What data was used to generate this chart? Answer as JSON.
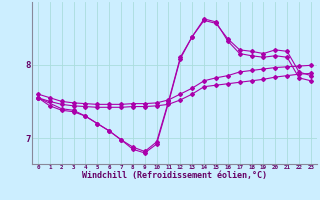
{
  "background_color": "#cceeff",
  "grid_color": "#aadddd",
  "line_color": "#aa00aa",
  "marker_color": "#aa00aa",
  "xlabel": "Windchill (Refroidissement éolien,°C)",
  "xlabel_fontsize": 6,
  "xtick_labels": [
    "0",
    "1",
    "2",
    "3",
    "4",
    "5",
    "6",
    "7",
    "8",
    "9",
    "10",
    "11",
    "12",
    "13",
    "14",
    "15",
    "16",
    "17",
    "18",
    "19",
    "20",
    "21",
    "22",
    "23"
  ],
  "ytick_labels": [
    "7",
    "8"
  ],
  "xmin": -0.5,
  "xmax": 23.5,
  "ymin": 6.65,
  "ymax": 8.85,
  "lines": [
    {
      "x": [
        0,
        1,
        2,
        3,
        4,
        5,
        6,
        7,
        8,
        9,
        10,
        11,
        12,
        13,
        14,
        15,
        16,
        17,
        18,
        19,
        20,
        21,
        22,
        23
      ],
      "y": [
        7.55,
        7.5,
        7.46,
        7.44,
        7.43,
        7.42,
        7.42,
        7.42,
        7.43,
        7.43,
        7.44,
        7.46,
        7.52,
        7.6,
        7.7,
        7.72,
        7.74,
        7.76,
        7.78,
        7.8,
        7.83,
        7.85,
        7.87,
        7.88
      ]
    },
    {
      "x": [
        0,
        1,
        2,
        3,
        4,
        5,
        6,
        7,
        8,
        9,
        10,
        11,
        12,
        13,
        14,
        15,
        16,
        17,
        18,
        19,
        20,
        21,
        22,
        23
      ],
      "y": [
        7.6,
        7.55,
        7.5,
        7.48,
        7.47,
        7.46,
        7.46,
        7.46,
        7.47,
        7.47,
        7.48,
        7.52,
        7.6,
        7.68,
        7.78,
        7.82,
        7.85,
        7.9,
        7.92,
        7.94,
        7.96,
        7.97,
        7.98,
        7.99
      ]
    },
    {
      "x": [
        0,
        1,
        2,
        3,
        4,
        5,
        6,
        7,
        8,
        9,
        10,
        11,
        12,
        13,
        14,
        15,
        16,
        17,
        18,
        19,
        20,
        21,
        22,
        23
      ],
      "y": [
        7.55,
        7.44,
        7.38,
        7.36,
        7.3,
        7.2,
        7.1,
        6.98,
        6.88,
        6.82,
        6.95,
        7.5,
        8.1,
        8.38,
        8.6,
        8.56,
        8.35,
        8.2,
        8.18,
        8.15,
        8.2,
        8.18,
        7.9,
        7.85
      ]
    },
    {
      "x": [
        0,
        2,
        3,
        4,
        5,
        6,
        7,
        8,
        9,
        10,
        11,
        12,
        13,
        14,
        15,
        16,
        17,
        18,
        19,
        20,
        21,
        22,
        23
      ],
      "y": [
        7.55,
        7.4,
        7.38,
        7.3,
        7.2,
        7.1,
        6.98,
        6.85,
        6.8,
        6.92,
        7.48,
        8.08,
        8.38,
        8.62,
        8.58,
        8.32,
        8.15,
        8.12,
        8.1,
        8.12,
        8.1,
        7.82,
        7.78
      ]
    }
  ]
}
